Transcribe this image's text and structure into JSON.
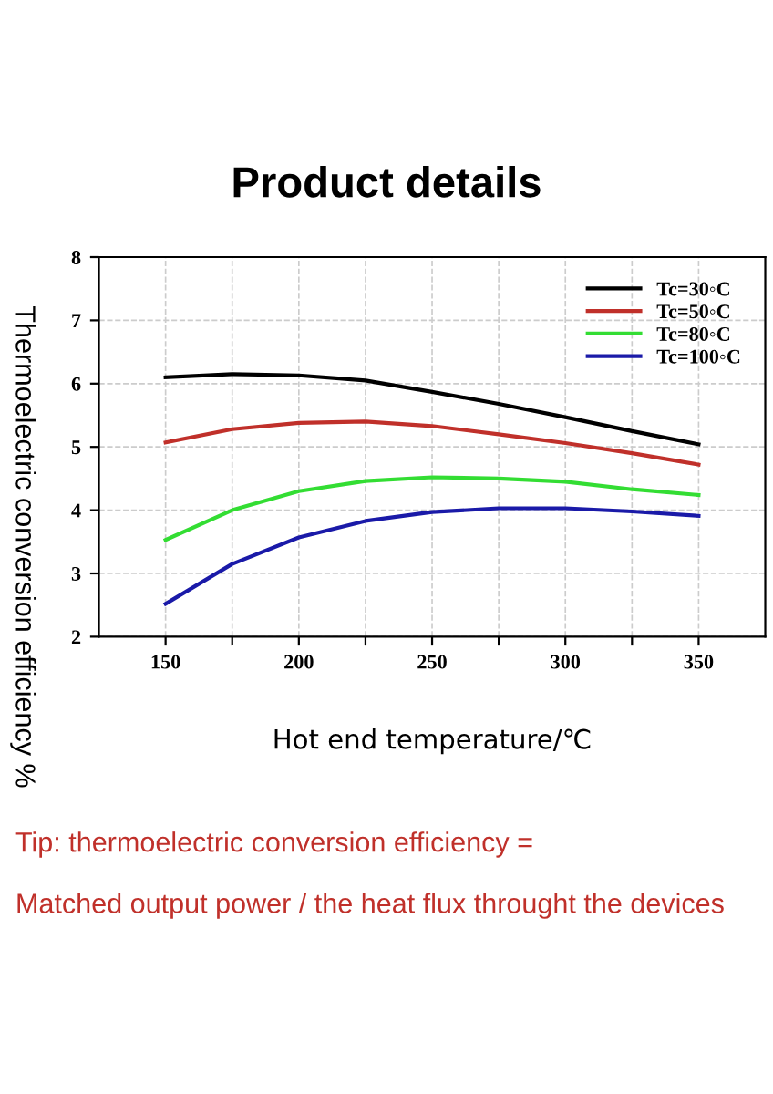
{
  "chart_data": {
    "type": "line",
    "title": "Product details",
    "xlabel": "Hot end temperature/℃",
    "ylabel": "Thermoelectric conversion efficiency %",
    "x": [
      150,
      175,
      200,
      225,
      250,
      275,
      300,
      325,
      350
    ],
    "series": [
      {
        "name": "Tc=30◦C",
        "color": "#000000",
        "values": [
          6.1,
          6.15,
          6.13,
          6.05,
          5.87,
          5.68,
          5.47,
          5.25,
          5.04
        ]
      },
      {
        "name": "Tc=50◦C",
        "color": "#c0302a",
        "values": [
          5.07,
          5.28,
          5.38,
          5.4,
          5.33,
          5.2,
          5.06,
          4.9,
          4.72
        ]
      },
      {
        "name": "Tc=80◦C",
        "color": "#33dd33",
        "values": [
          3.53,
          4.0,
          4.3,
          4.46,
          4.52,
          4.5,
          4.45,
          4.33,
          4.24
        ]
      },
      {
        "name": "Tc=100◦C",
        "color": "#1a1aa8",
        "values": [
          2.52,
          3.15,
          3.57,
          3.83,
          3.97,
          4.03,
          4.03,
          3.98,
          3.91
        ]
      }
    ],
    "xlim": [
      125,
      375
    ],
    "ylim": [
      2,
      8
    ],
    "xticks": [
      150,
      {
        "value": 175,
        "label": null
      },
      200,
      {
        "value": 225,
        "label": null
      },
      250,
      {
        "value": 275,
        "label": null
      },
      300,
      {
        "value": 325,
        "label": null
      },
      350
    ],
    "yticks": [
      2,
      3,
      4,
      5,
      6,
      7,
      8
    ],
    "grid": true,
    "legend": "top right",
    "marker": "none",
    "line_style": "solid",
    "annotations": [
      "Tip: thermoelectric conversion efficiency =",
      "Matched output power / the heat flux throught the devices"
    ]
  }
}
